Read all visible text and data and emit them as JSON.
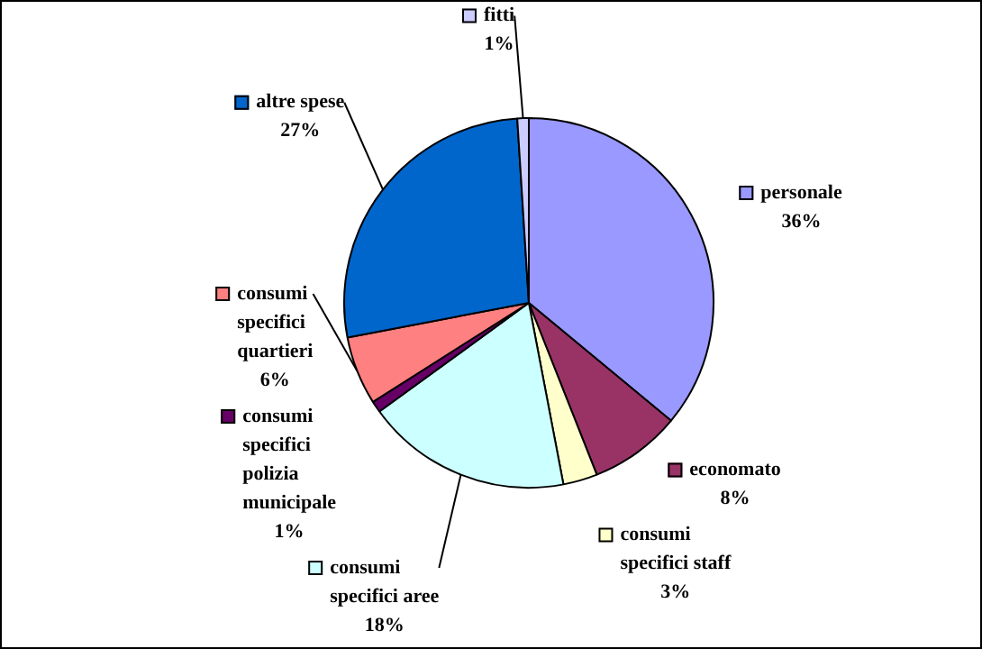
{
  "chart_data": {
    "type": "pie",
    "categories": [
      "personale",
      "economato",
      "consumi specifici staff",
      "consumi specifici aree",
      "consumi specifici polizia municipale",
      "consumi specifici quartieri",
      "altre spese",
      "fitti"
    ],
    "values": [
      36,
      8,
      3,
      18,
      1,
      6,
      27,
      1
    ],
    "value_labels": [
      "36%",
      "8%",
      "3%",
      "18%",
      "1%",
      "6%",
      "27%",
      "1%"
    ],
    "colors": [
      "#9999ff",
      "#993366",
      "#ffffcc",
      "#ccffff",
      "#660066",
      "#ff8080",
      "#0066cc",
      "#ccccff"
    ],
    "legend": "right"
  }
}
